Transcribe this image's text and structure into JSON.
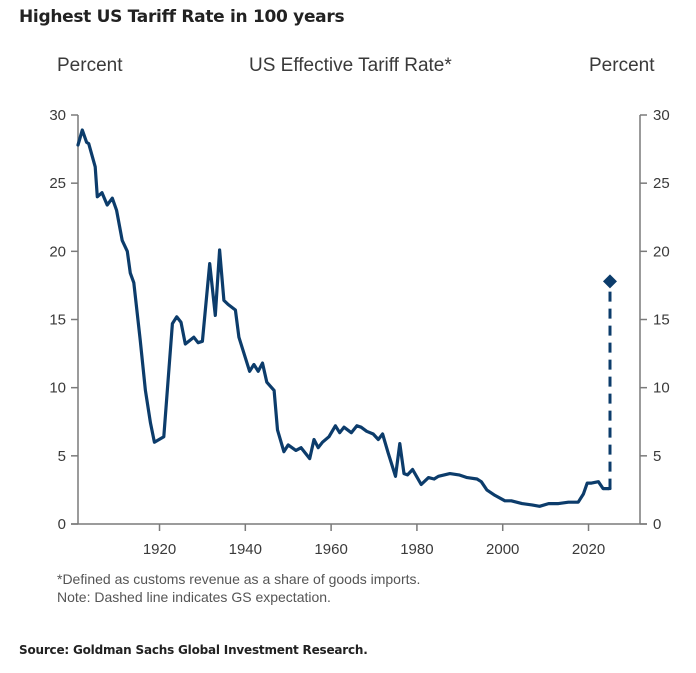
{
  "page": {
    "title": "Highest US Tariff Rate in 100 years",
    "footnote_1": "*Defined as customs revenue as a share of goods imports.",
    "footnote_2": "Note: Dashed line indicates GS expectation.",
    "source": "Source: Goldman Sachs Global Investment Research."
  },
  "chart_data": {
    "type": "line",
    "title": "US Effective Tariff Rate*",
    "ylabel_left": "Percent",
    "ylabel_right": "Percent",
    "xlabel": "",
    "xlim": [
      1901,
      2032
    ],
    "ylim": [
      0,
      30
    ],
    "yticks": [
      0,
      5,
      10,
      15,
      20,
      25,
      30
    ],
    "xticks": [
      1920,
      1940,
      1960,
      1980,
      2000,
      2020
    ],
    "grid": false,
    "legend": "none",
    "colors": {
      "line": "#0c3c6b",
      "axis": "#7a7a7a"
    },
    "series": [
      {
        "name": "US Effective Tariff Rate (historical)",
        "style": "solid",
        "x": [
          1901,
          1902,
          1903,
          1903.5,
          1905,
          1905.5,
          1906.6,
          1907.8,
          1909,
          1910,
          1911.3,
          1912.5,
          1913.2,
          1914,
          1915.5,
          1916.7,
          1917.9,
          1918.8,
          1921,
          1923,
          1924,
          1925,
          1926,
          1928,
          1929,
          1930,
          1931.7,
          1933,
          1934,
          1935,
          1936,
          1937.7,
          1938.5,
          1941,
          1942,
          1943,
          1944,
          1945,
          1946.7,
          1947.5,
          1949,
          1950,
          1951.8,
          1953,
          1955,
          1956,
          1957,
          1958,
          1959.5,
          1961,
          1962,
          1963,
          1964.7,
          1966,
          1967,
          1968.3,
          1969.8,
          1971,
          1972,
          1973.3,
          1975,
          1976,
          1977,
          1977.8,
          1979,
          1981,
          1982.7,
          1984,
          1985,
          1987.7,
          1989.8,
          1991.7,
          1994,
          1995,
          1996.3,
          1998.2,
          2000.5,
          2002,
          2004.5,
          2006.8,
          2008.6,
          2010.7,
          2013,
          2015.3,
          2017.6,
          2018.8,
          2019.7,
          2020.7,
          2022.3,
          2023.4,
          2024.6
        ],
        "y": [
          27.8,
          28.9,
          28.0,
          27.9,
          26.2,
          24.0,
          24.3,
          23.4,
          23.9,
          23.0,
          20.8,
          20.0,
          18.4,
          17.7,
          13.5,
          9.8,
          7.4,
          6.0,
          6.4,
          14.7,
          15.2,
          14.8,
          13.2,
          13.7,
          13.3,
          13.4,
          19.1,
          15.3,
          20.1,
          16.4,
          16.1,
          15.7,
          13.7,
          11.2,
          11.7,
          11.2,
          11.8,
          10.4,
          9.8,
          6.9,
          5.3,
          5.8,
          5.4,
          5.6,
          4.8,
          6.2,
          5.6,
          6.0,
          6.4,
          7.2,
          6.7,
          7.1,
          6.7,
          7.2,
          7.1,
          6.8,
          6.6,
          6.2,
          6.6,
          5.2,
          3.5,
          5.9,
          3.7,
          3.6,
          4.0,
          2.9,
          3.4,
          3.3,
          3.5,
          3.7,
          3.6,
          3.4,
          3.3,
          3.1,
          2.5,
          2.1,
          1.7,
          1.7,
          1.5,
          1.4,
          1.3,
          1.5,
          1.5,
          1.6,
          1.6,
          2.2,
          3.0,
          3.0,
          3.1,
          2.6,
          2.6
        ]
      },
      {
        "name": "GS expectation",
        "style": "dashed",
        "marker_end": "diamond",
        "x": [
          2025,
          2025
        ],
        "y": [
          2.6,
          17.8
        ]
      }
    ]
  }
}
